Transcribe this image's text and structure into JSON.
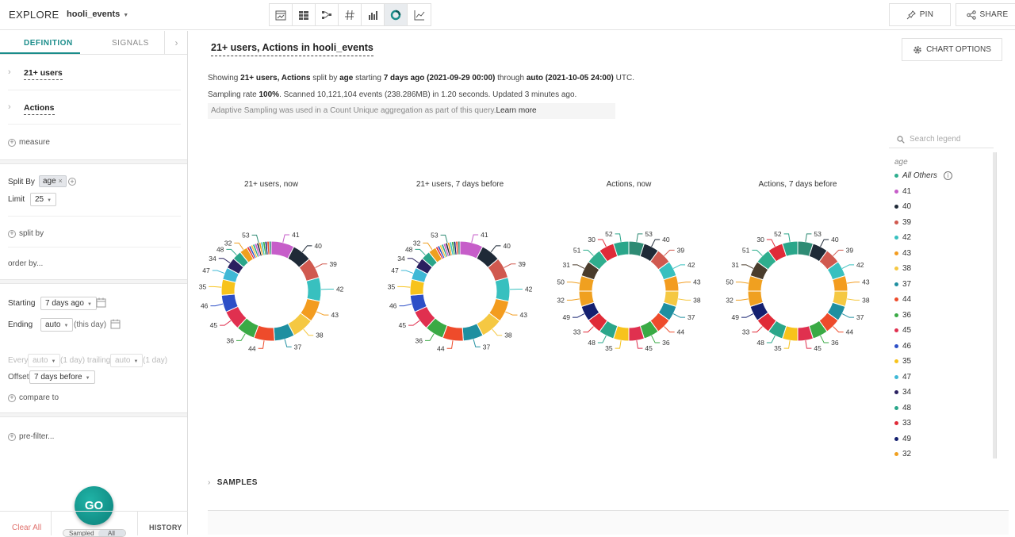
{
  "header": {
    "app_title": "EXPLORE",
    "dataset": "hooli_events",
    "visualizations": [
      {
        "icon": "timeline-icon",
        "active": false
      },
      {
        "icon": "table-icon",
        "active": false
      },
      {
        "icon": "sankey-icon",
        "active": false
      },
      {
        "icon": "number-icon",
        "active": false
      },
      {
        "icon": "bar-chart-icon",
        "active": false
      },
      {
        "icon": "pie-chart-icon",
        "active": true
      },
      {
        "icon": "line-chart-icon",
        "active": false
      }
    ],
    "pin_label": "PIN",
    "share_label": "SHARE"
  },
  "sidebar": {
    "tabs": {
      "definition": "DEFINITION",
      "signals": "SIGNALS"
    },
    "queries": [
      "21+ users",
      "Actions"
    ],
    "measure_label": "measure",
    "split_by_label": "Split By",
    "split_chip": "age",
    "limit_label": "Limit",
    "limit_value": "25",
    "split_by_link": "split by",
    "order_by": "order by...",
    "starting_label": "Starting",
    "starting_value": "7 days ago",
    "ending_label": "Ending",
    "ending_value": "auto",
    "ending_suffix": "(this day)",
    "every_label": "Every",
    "every_value": "auto",
    "trailing_text": "(1 day) trailing",
    "trailing_value": "auto",
    "trailing_suffix": "(1 day)",
    "offset_label": "Offset",
    "offset_value": "7 days before",
    "compare_to": "compare to",
    "prefilter": "pre-filter...",
    "go_label": "GO",
    "clear_all": "Clear All",
    "sampled": "Sampled",
    "all": "All",
    "history": "HISTORY"
  },
  "main": {
    "title": "21+ users, Actions in hooli_events",
    "chart_options": "CHART OPTIONS",
    "line1": {
      "p1": "Showing ",
      "b1": "21+ users, Actions",
      "p2": " split by ",
      "b2": "age",
      "p3": " starting ",
      "b3": "7 days ago (2021-09-29 00:00)",
      "p4": " through ",
      "b4": "auto (2021-10-05 24:00)",
      "p5": " UTC."
    },
    "line2": {
      "p1": "Sampling rate ",
      "b1": "100%",
      "p2": ". Scanned 10,121,104 events (238.286MB) in 1.20 seconds. Updated 3 minutes ago."
    },
    "note_text": "Adaptive Sampling was used in a Count Unique aggregation as part of this query.",
    "note_link": "Learn more",
    "samples_label": "SAMPLES"
  },
  "legend": {
    "search_placeholder": "Search legend",
    "heading": "age",
    "items": [
      {
        "label": "All Others",
        "color": "#2fae8e"
      },
      {
        "label": "41",
        "color": "#c65dc9"
      },
      {
        "label": "40",
        "color": "#1f2a37"
      },
      {
        "label": "39",
        "color": "#d0594f"
      },
      {
        "label": "42",
        "color": "#38c0bf"
      },
      {
        "label": "43",
        "color": "#f39c1f"
      },
      {
        "label": "38",
        "color": "#f5c842"
      },
      {
        "label": "37",
        "color": "#1f8fa0"
      },
      {
        "label": "44",
        "color": "#ee4b2b"
      },
      {
        "label": "36",
        "color": "#3aaa45"
      },
      {
        "label": "45",
        "color": "#e0304f"
      },
      {
        "label": "46",
        "color": "#2d4fc7"
      },
      {
        "label": "35",
        "color": "#f7c31c"
      },
      {
        "label": "47",
        "color": "#3fb8d6"
      },
      {
        "label": "34",
        "color": "#2a2060"
      },
      {
        "label": "48",
        "color": "#2aa68a"
      },
      {
        "label": "33",
        "color": "#e02b38"
      },
      {
        "label": "49",
        "color": "#14206f"
      },
      {
        "label": "32",
        "color": "#f0a020"
      }
    ]
  },
  "chart_data": [
    {
      "type": "pie",
      "title": "21+ users, now",
      "categories": [
        "41",
        "40",
        "39",
        "42",
        "43",
        "38",
        "37",
        "44",
        "36",
        "45",
        "46",
        "35",
        "47",
        "34",
        "48",
        "32",
        "53"
      ],
      "values": [
        7.6,
        6.4,
        6.8,
        7.8,
        7.0,
        7.2,
        6.6,
        6.8,
        6.2,
        6.4,
        5.6,
        5.2,
        4.0,
        3.6,
        3.0,
        2.6,
        8.2
      ]
    },
    {
      "type": "pie",
      "title": "21+ users, 7 days before",
      "categories": [
        "41",
        "40",
        "39",
        "42",
        "43",
        "38",
        "37",
        "44",
        "36",
        "45",
        "46",
        "35",
        "47",
        "34",
        "48",
        "32",
        "53"
      ],
      "values": [
        7.6,
        6.4,
        6.8,
        7.8,
        7.0,
        7.2,
        6.6,
        6.8,
        6.2,
        6.4,
        5.6,
        5.2,
        4.0,
        3.6,
        3.0,
        2.6,
        8.2
      ]
    },
    {
      "type": "pie",
      "title": "Actions, now",
      "categories": [
        "53",
        "40",
        "39",
        "42",
        "43",
        "38",
        "37",
        "44",
        "36",
        "45",
        "35",
        "48",
        "33",
        "49",
        "32",
        "50",
        "31",
        "51",
        "30",
        "52"
      ],
      "values": [
        5,
        5,
        5,
        5,
        5,
        5,
        5,
        5,
        5,
        5,
        5,
        5,
        5,
        5,
        5,
        5,
        5,
        5,
        5,
        5
      ]
    },
    {
      "type": "pie",
      "title": "Actions, 7 days before",
      "categories": [
        "53",
        "40",
        "39",
        "42",
        "43",
        "38",
        "37",
        "44",
        "36",
        "45",
        "35",
        "48",
        "33",
        "49",
        "32",
        "50",
        "31",
        "51",
        "30",
        "52"
      ],
      "values": [
        5,
        5,
        5,
        5,
        5,
        5,
        5,
        5,
        5,
        5,
        5,
        5,
        5,
        5,
        5,
        5,
        5,
        5,
        5,
        5
      ]
    }
  ]
}
